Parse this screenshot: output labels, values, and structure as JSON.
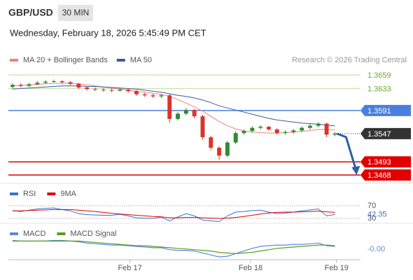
{
  "chart_data": {
    "type": "candlestick",
    "title": "GBP/USD",
    "timeframe": "30 MIN",
    "timestamp": "Wednesday, February 18, 2026 5:45:49 PM CET",
    "source": "Research © 2026 Trading Central",
    "open": [
      1.3636,
      1.364,
      1.3638,
      1.3641,
      1.3644,
      1.3646,
      1.3647,
      1.3645,
      1.3642,
      1.3635,
      1.3632,
      1.3631,
      1.363,
      1.3629,
      1.3631,
      1.3628,
      1.3622,
      1.362,
      1.3618,
      1.362,
      1.3575,
      1.3585,
      1.3592,
      1.358,
      1.354,
      1.352,
      1.3505,
      1.353,
      1.3548,
      1.3552,
      1.3558,
      1.356,
      1.3555,
      1.3548,
      1.355,
      1.3553,
      1.3558,
      1.3562,
      1.3566,
      1.3545
    ],
    "high": [
      1.3643,
      1.3643,
      1.3644,
      1.3647,
      1.3649,
      1.365,
      1.3649,
      1.3647,
      1.3644,
      1.3637,
      1.3635,
      1.3634,
      1.3633,
      1.3634,
      1.3633,
      1.363,
      1.3625,
      1.3623,
      1.3623,
      1.3622,
      1.3588,
      1.3596,
      1.3594,
      1.3583,
      1.3543,
      1.3523,
      1.3533,
      1.3551,
      1.3555,
      1.3561,
      1.3563,
      1.3562,
      1.3557,
      1.3553,
      1.3556,
      1.3561,
      1.3565,
      1.3569,
      1.3568,
      1.355
    ],
    "low": [
      1.3633,
      1.3635,
      1.3636,
      1.3639,
      1.3642,
      1.3644,
      1.3642,
      1.3639,
      1.3632,
      1.3629,
      1.3628,
      1.3627,
      1.3626,
      1.3627,
      1.3625,
      1.3619,
      1.3617,
      1.3615,
      1.3615,
      1.3568,
      1.3572,
      1.3582,
      1.3576,
      1.3535,
      1.3515,
      1.3497,
      1.3502,
      1.3527,
      1.3545,
      1.3549,
      1.3555,
      1.3552,
      1.3545,
      1.3545,
      1.3547,
      1.355,
      1.3555,
      1.3559,
      1.354,
      1.3542
    ],
    "close": [
      1.364,
      1.3638,
      1.3641,
      1.3644,
      1.3646,
      1.3647,
      1.3645,
      1.3642,
      1.3635,
      1.3632,
      1.3631,
      1.363,
      1.3629,
      1.3631,
      1.3628,
      1.3622,
      1.362,
      1.3618,
      1.362,
      1.3575,
      1.3585,
      1.3592,
      1.358,
      1.354,
      1.352,
      1.3505,
      1.353,
      1.3548,
      1.3552,
      1.3558,
      1.356,
      1.3555,
      1.3548,
      1.355,
      1.3553,
      1.3558,
      1.3562,
      1.3566,
      1.3545,
      1.3547
    ],
    "up_color": "#2e8b2e",
    "down_color": "#d9342b",
    "series": [
      {
        "name": "MA 20 + Bollinger Bands",
        "color": "#f08080",
        "values": [
          1.3638,
          1.3639,
          1.364,
          1.3641,
          1.3642,
          1.3643,
          1.3643,
          1.3643,
          1.3642,
          1.364,
          1.3638,
          1.3636,
          1.3634,
          1.3632,
          1.363,
          1.3628,
          1.3626,
          1.3624,
          1.3622,
          1.3618,
          1.3612,
          1.3605,
          1.3598,
          1.359,
          1.358,
          1.357,
          1.3562,
          1.3556,
          1.3552,
          1.355,
          1.3549,
          1.3548,
          1.3548,
          1.3549,
          1.355,
          1.3551,
          1.3553,
          1.3555,
          1.3555,
          1.3554
        ]
      },
      {
        "name": "MA 50",
        "color": "#3d5a9e",
        "values": [
          1.3632,
          1.3633,
          1.3634,
          1.3635,
          1.3636,
          1.3637,
          1.3638,
          1.3638,
          1.3638,
          1.3637,
          1.3637,
          1.3636,
          1.3635,
          1.3634,
          1.3633,
          1.3632,
          1.363,
          1.3628,
          1.3626,
          1.3623,
          1.362,
          1.3618,
          1.3615,
          1.3611,
          1.3606,
          1.36,
          1.3596,
          1.3592,
          1.3588,
          1.3584,
          1.358,
          1.3576,
          1.3573,
          1.3571,
          1.3569,
          1.3567,
          1.3566,
          1.3565,
          1.3563,
          1.3562
        ]
      }
    ],
    "ylim": [
      1.3452,
      1.3675
    ],
    "xlim": [
      -0.5,
      42.1
    ],
    "xticks": [
      {
        "value": 14.2,
        "label": "Feb 17"
      },
      {
        "value": 28.8,
        "label": "Feb 18"
      },
      {
        "value": 39.2,
        "label": "Feb 19"
      }
    ],
    "levels": [
      {
        "value": 1.3659,
        "color": "#6aaa2a",
        "style": "text"
      },
      {
        "value": 1.3633,
        "color": "#6aaa2a",
        "style": "text"
      },
      {
        "value": 1.3591,
        "color": "#4a7fe0",
        "style": "box"
      },
      {
        "value": 1.3547,
        "color": "#333333",
        "style": "current"
      },
      {
        "value": 1.3493,
        "color": "#e00000",
        "style": "box"
      },
      {
        "value": 1.3468,
        "color": "#e00000",
        "style": "box"
      }
    ],
    "rsi": {
      "ylim": [
        20,
        90
      ],
      "yticks": [
        70,
        30
      ],
      "series": [
        {
          "name": "RSI",
          "color": "#3d6fd0",
          "values": [
            55,
            52,
            56,
            60,
            62,
            63,
            58,
            54,
            45,
            42,
            41,
            40,
            40,
            43,
            38,
            32,
            31,
            30,
            34,
            22,
            35,
            45,
            38,
            25,
            22,
            20,
            38,
            50,
            52,
            55,
            56,
            50,
            45,
            47,
            50,
            54,
            57,
            60,
            38,
            42.35
          ]
        },
        {
          "name": "9MA",
          "color": "#e00000",
          "values": [
            54,
            54,
            55,
            56,
            57,
            58,
            58,
            58,
            56,
            54,
            52,
            49,
            46,
            44,
            42,
            40,
            38,
            36,
            35,
            32,
            32,
            33,
            33,
            32,
            31,
            30,
            31,
            33,
            36,
            40,
            44,
            47,
            49,
            50,
            50,
            51,
            52,
            53,
            51,
            49
          ]
        }
      ]
    },
    "macd": {
      "ylim": [
        -0.002,
        0.0015
      ],
      "series": [
        {
          "name": "MACD",
          "color": "#5b8ad8",
          "values": [
            0.0006,
            0.0005,
            0.0005,
            0.0005,
            0.0005,
            0.0006,
            0.0006,
            0.0005,
            0.0004,
            0.0002,
            0.0001,
            0,
            -0.0001,
            -0.0001,
            -0.0002,
            -0.0003,
            -0.0004,
            -0.0005,
            -0.0005,
            -0.0008,
            -0.0009,
            -0.0009,
            -0.001,
            -0.0013,
            -0.0016,
            -0.0019,
            -0.0018,
            -0.0014,
            -0.001,
            -0.0006,
            -0.0003,
            -0.0002,
            -0.0001,
            -0.0001,
            0,
            0,
            0.0001,
            0.0002,
            -0.0002,
            -0.0003
          ],
          "value_labels": [
            null,
            null,
            null,
            null,
            null,
            null,
            null,
            null,
            null,
            null,
            null,
            null,
            null,
            null,
            null,
            null,
            null,
            null,
            null,
            null,
            null,
            null,
            null,
            null,
            null,
            null,
            null,
            null,
            null,
            null,
            null,
            null,
            null,
            null,
            null,
            null,
            null,
            null,
            null,
            "-0.00"
          ]
        },
        {
          "name": "MACD Signal",
          "color": "#5a9e1e",
          "values": [
            0.0005,
            0.0005,
            0.0005,
            0.0005,
            0.0005,
            0.0005,
            0.0005,
            0.0005,
            0.0005,
            0.0004,
            0.0003,
            0.0002,
            0.0001,
            0,
            -0.0001,
            -0.0002,
            -0.0002,
            -0.0003,
            -0.0004,
            -0.0005,
            -0.0006,
            -0.0007,
            -0.0008,
            -0.0009,
            -0.001,
            -0.0012,
            -0.0013,
            -0.0014,
            -0.0013,
            -0.0012,
            -0.001,
            -0.0008,
            -0.0006,
            -0.0005,
            -0.0004,
            -0.0003,
            -0.0002,
            -0.0001,
            -0.0001,
            -0.0002
          ]
        }
      ]
    }
  }
}
